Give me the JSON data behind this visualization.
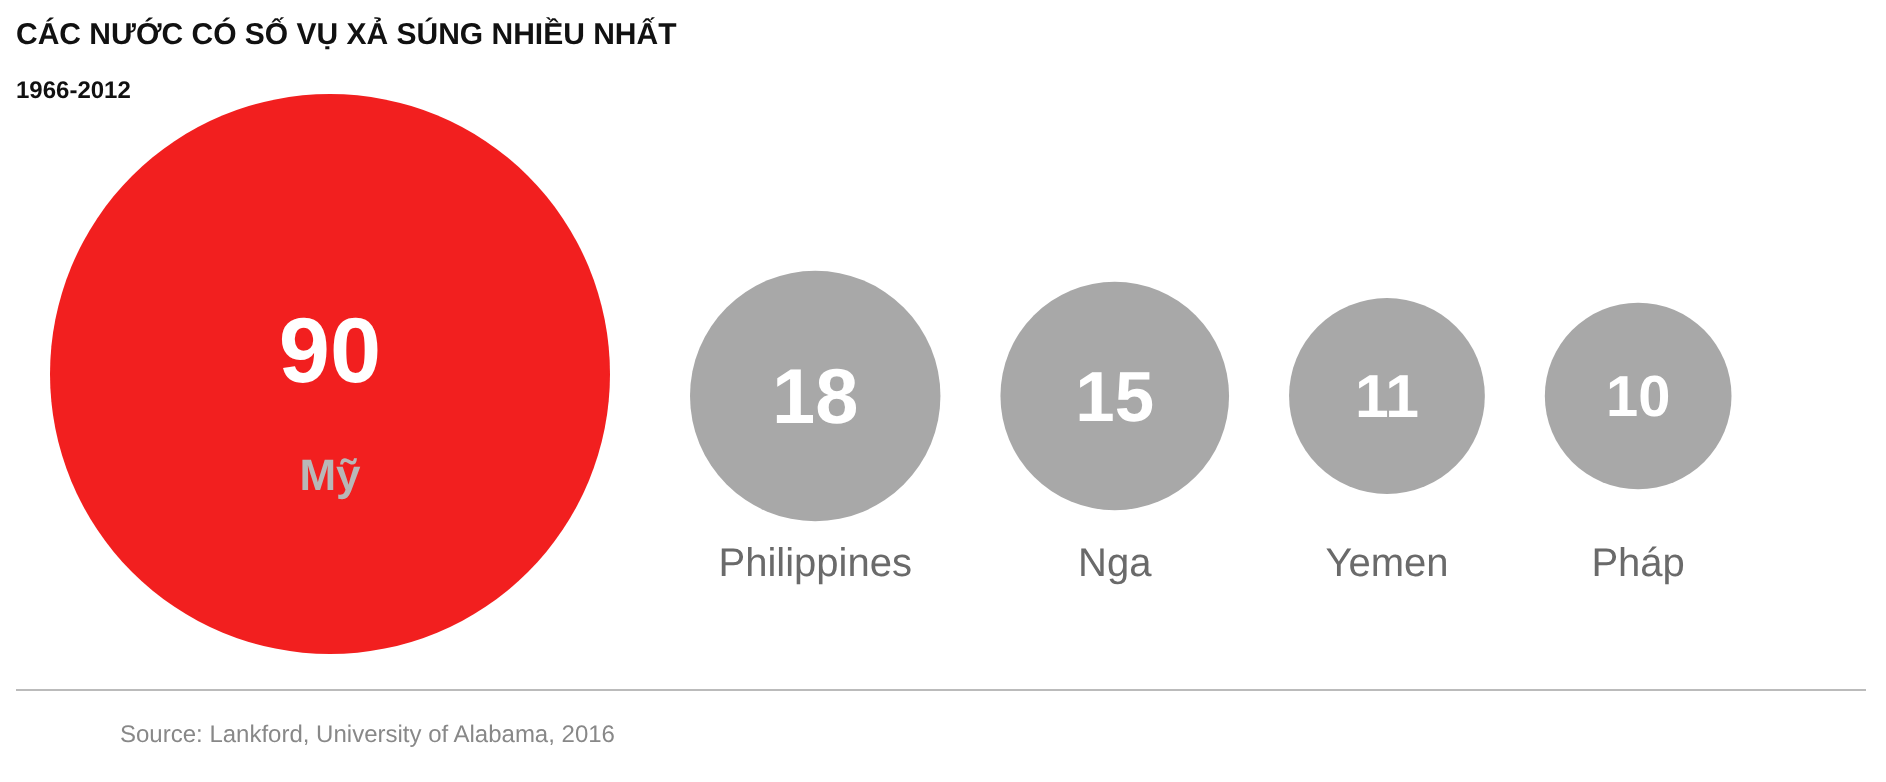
{
  "chart_data": {
    "type": "other",
    "title": "CÁC NƯỚC CÓ SỐ VỤ XẢ SÚNG NHIỀU NHẤT",
    "subtitle": "1966-2012",
    "categories": [
      "Mỹ",
      "Philippines",
      "Nga",
      "Yemen",
      "Pháp"
    ],
    "values": [
      90,
      18,
      15,
      11,
      10
    ],
    "colors": [
      "#f21f1f",
      "#a8a8a8",
      "#a8a8a8",
      "#a8a8a8",
      "#a8a8a8"
    ],
    "data_labels": true,
    "annotations": [
      "Source: Lankford, University of Alabama, 2016"
    ]
  }
}
